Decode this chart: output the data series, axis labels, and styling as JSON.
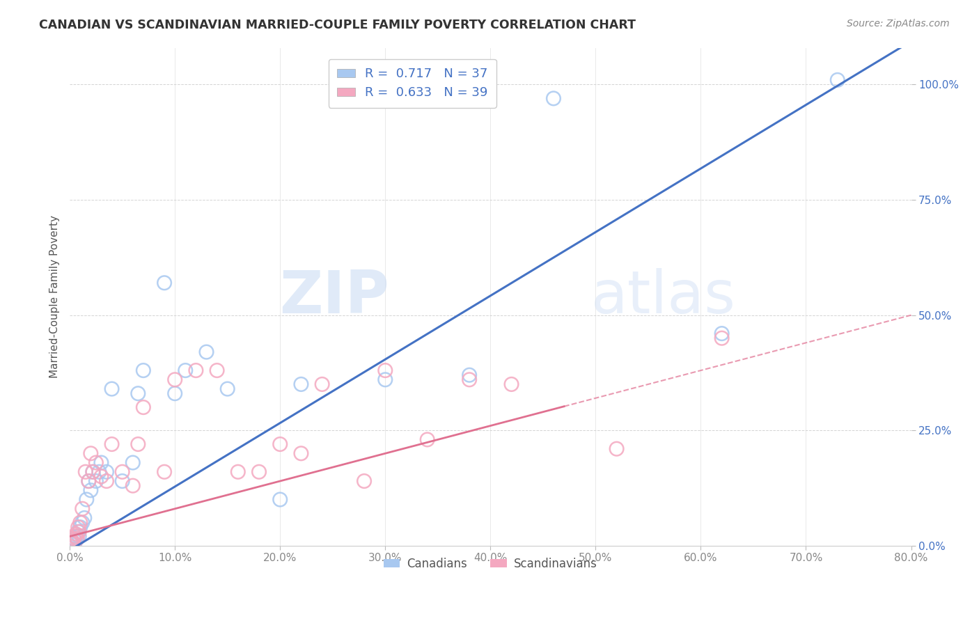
{
  "title": "CANADIAN VS SCANDINAVIAN MARRIED-COUPLE FAMILY POVERTY CORRELATION CHART",
  "source": "Source: ZipAtlas.com",
  "ylabel": "Married-Couple Family Poverty",
  "xlabel_ticks": [
    "0.0%",
    "10.0%",
    "20.0%",
    "30.0%",
    "40.0%",
    "50.0%",
    "60.0%",
    "70.0%",
    "80.0%"
  ],
  "xlabel_vals": [
    0.0,
    0.1,
    0.2,
    0.3,
    0.4,
    0.5,
    0.6,
    0.7,
    0.8
  ],
  "ylabel_ticks": [
    "0.0%",
    "25.0%",
    "50.0%",
    "75.0%",
    "100.0%"
  ],
  "ylabel_vals": [
    0.0,
    0.25,
    0.5,
    0.75,
    1.0
  ],
  "xlim": [
    0.0,
    0.8
  ],
  "ylim": [
    0.0,
    1.08
  ],
  "canadian_R": "0.717",
  "canadian_N": "37",
  "scandinavian_R": "0.633",
  "scandinavian_N": "39",
  "canadian_color": "#a8c8f0",
  "scandinavian_color": "#f4a8c0",
  "canadian_line_color": "#4472c4",
  "scandinavian_line_color": "#e07090",
  "watermark_zip": "ZIP",
  "watermark_atlas": "atlas",
  "background_color": "#ffffff",
  "legend_label_canadian": "Canadians",
  "legend_label_scandinavian": "Scandinavians",
  "canadian_line_slope": 1.38,
  "canadian_line_intercept": -0.01,
  "scandinavian_line_slope": 0.6,
  "scandinavian_line_intercept": 0.02,
  "canadians_x": [
    0.001,
    0.002,
    0.003,
    0.004,
    0.005,
    0.006,
    0.007,
    0.008,
    0.009,
    0.01,
    0.012,
    0.014,
    0.016,
    0.018,
    0.02,
    0.022,
    0.025,
    0.028,
    0.03,
    0.035,
    0.04,
    0.05,
    0.06,
    0.065,
    0.07,
    0.09,
    0.1,
    0.11,
    0.13,
    0.15,
    0.2,
    0.22,
    0.3,
    0.38,
    0.46,
    0.62,
    0.73
  ],
  "canadians_y": [
    0.005,
    0.01,
    0.005,
    0.015,
    0.01,
    0.02,
    0.015,
    0.03,
    0.02,
    0.04,
    0.05,
    0.06,
    0.1,
    0.14,
    0.12,
    0.16,
    0.14,
    0.16,
    0.18,
    0.16,
    0.34,
    0.14,
    0.18,
    0.33,
    0.38,
    0.57,
    0.33,
    0.38,
    0.42,
    0.34,
    0.1,
    0.35,
    0.36,
    0.37,
    0.97,
    0.46,
    1.01
  ],
  "scandinavians_x": [
    0.001,
    0.002,
    0.003,
    0.004,
    0.005,
    0.006,
    0.007,
    0.008,
    0.009,
    0.01,
    0.012,
    0.015,
    0.018,
    0.02,
    0.022,
    0.025,
    0.03,
    0.035,
    0.04,
    0.05,
    0.06,
    0.065,
    0.07,
    0.09,
    0.1,
    0.12,
    0.14,
    0.16,
    0.18,
    0.2,
    0.22,
    0.24,
    0.28,
    0.3,
    0.34,
    0.38,
    0.42,
    0.52,
    0.62
  ],
  "scandinavians_y": [
    0.005,
    0.01,
    0.008,
    0.015,
    0.02,
    0.025,
    0.015,
    0.04,
    0.03,
    0.05,
    0.08,
    0.16,
    0.14,
    0.2,
    0.16,
    0.18,
    0.15,
    0.14,
    0.22,
    0.16,
    0.13,
    0.22,
    0.3,
    0.16,
    0.36,
    0.38,
    0.38,
    0.16,
    0.16,
    0.22,
    0.2,
    0.35,
    0.14,
    0.38,
    0.23,
    0.36,
    0.35,
    0.21,
    0.45
  ]
}
